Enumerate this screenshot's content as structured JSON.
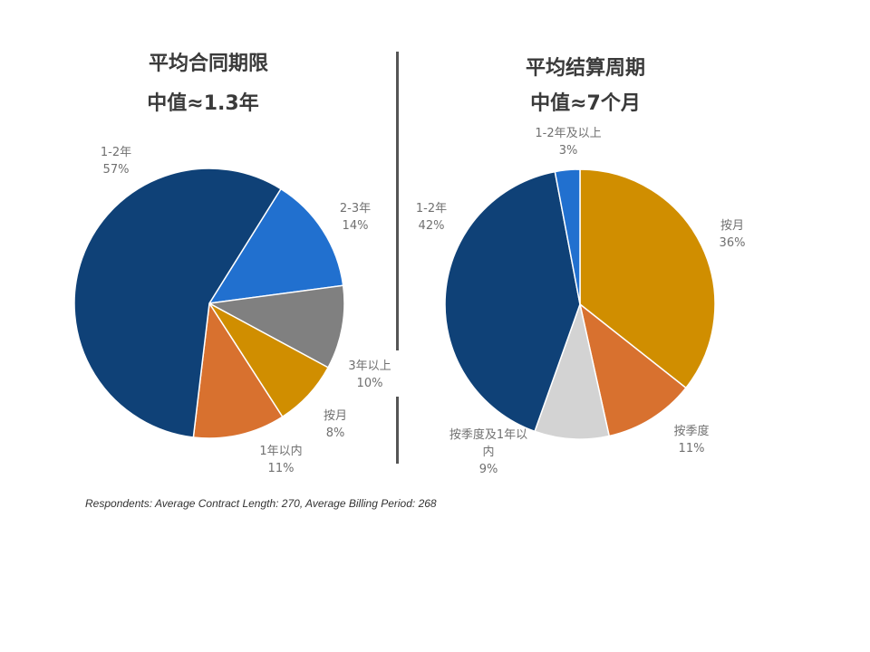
{
  "chart_data": [
    {
      "type": "pie",
      "title": "平均合同期限",
      "subtitle": "中值≈1.3年",
      "slices": [
        {
          "label": "1-2年",
          "value": 57,
          "pct": "57%",
          "color": "#0f4177"
        },
        {
          "label": "2-3年",
          "value": 14,
          "pct": "14%",
          "color": "#2170cf"
        },
        {
          "label": "3年以上",
          "value": 10,
          "pct": "10%",
          "color": "#808080"
        },
        {
          "label": "按月",
          "value": 8,
          "pct": "8%",
          "color": "#d08e00"
        },
        {
          "label": "1年以内",
          "value": 11,
          "pct": "11%",
          "color": "#d8712f"
        }
      ]
    },
    {
      "type": "pie",
      "title": "平均结算周期",
      "subtitle": "中值≈7个月",
      "slices": [
        {
          "label": "按月",
          "value": 36,
          "pct": "36%",
          "color": "#d08e00"
        },
        {
          "label": "按季度",
          "value": 11,
          "pct": "11%",
          "color": "#d8712f"
        },
        {
          "label": "按季度及1年以内",
          "value": 9,
          "pct": "9%",
          "color": "#d3d3d3"
        },
        {
          "label": "1-2年",
          "value": 42,
          "pct": "42%",
          "color": "#0f4177"
        },
        {
          "label": "1-2年及以上",
          "value": 3,
          "pct": "3%",
          "color": "#2170cf"
        }
      ]
    }
  ],
  "footnote": "Respondents: Average Contract Length: 270, Average Billing Period: 268"
}
